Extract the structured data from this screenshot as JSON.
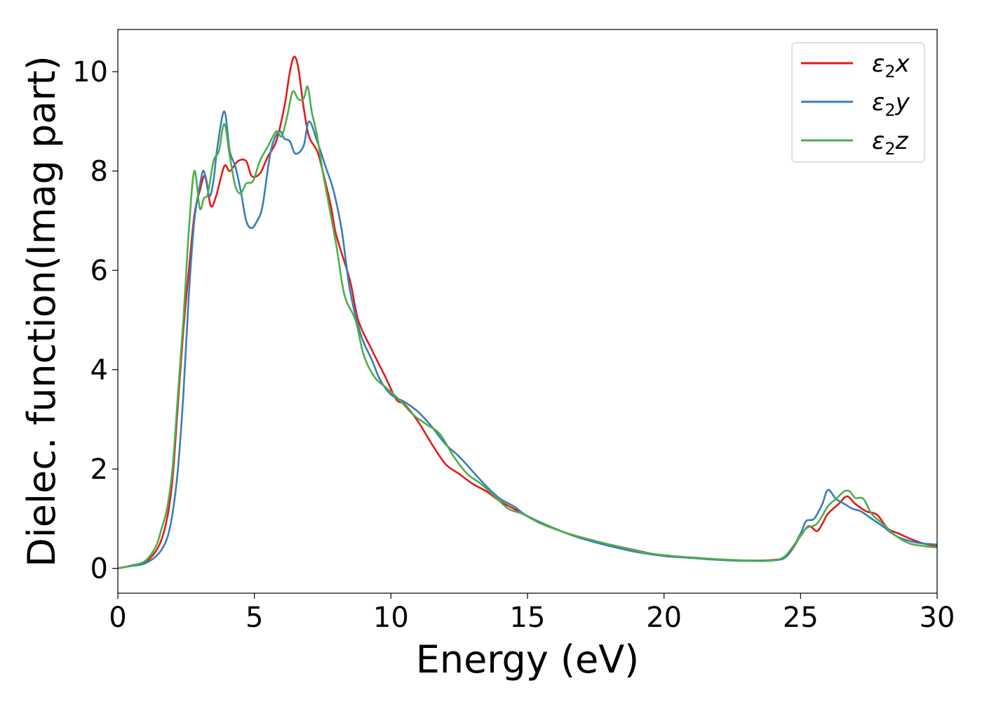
{
  "chart_data": {
    "type": "line",
    "xlabel": "Energy (eV)",
    "ylabel": "Dielec. function(Imag part)",
    "xlim": [
      0,
      30
    ],
    "ylim": [
      -0.5,
      10.85
    ],
    "xticks": [
      0,
      5,
      10,
      15,
      20,
      25,
      30
    ],
    "yticks": [
      0,
      2,
      4,
      6,
      8,
      10
    ],
    "grid": false,
    "legend_position": "top-right",
    "series": [
      {
        "name": "ε₂x",
        "legend": {
          "base": "ε",
          "sub": "2",
          "suffix": "x"
        },
        "color": "#e41a1c",
        "points": [
          [
            0,
            0
          ],
          [
            0.5,
            0.05
          ],
          [
            1.0,
            0.12
          ],
          [
            1.5,
            0.45
          ],
          [
            1.8,
            1.0
          ],
          [
            2.0,
            1.8
          ],
          [
            2.2,
            3.3
          ],
          [
            2.4,
            4.8
          ],
          [
            2.6,
            6.0
          ],
          [
            2.8,
            7.1
          ],
          [
            3.0,
            7.6
          ],
          [
            3.2,
            7.9
          ],
          [
            3.4,
            7.3
          ],
          [
            3.6,
            7.5
          ],
          [
            3.9,
            8.1
          ],
          [
            4.1,
            8.0
          ],
          [
            4.4,
            8.2
          ],
          [
            4.7,
            8.2
          ],
          [
            4.9,
            7.9
          ],
          [
            5.2,
            7.95
          ],
          [
            5.5,
            8.3
          ],
          [
            5.8,
            8.6
          ],
          [
            6.1,
            9.3
          ],
          [
            6.3,
            10.0
          ],
          [
            6.45,
            10.3
          ],
          [
            6.6,
            10.1
          ],
          [
            6.8,
            9.3
          ],
          [
            7.0,
            8.7
          ],
          [
            7.3,
            8.4
          ],
          [
            7.5,
            8.0
          ],
          [
            7.8,
            7.3
          ],
          [
            8.0,
            6.7
          ],
          [
            8.5,
            5.8
          ],
          [
            8.8,
            5.0
          ],
          [
            9.3,
            4.4
          ],
          [
            9.8,
            3.85
          ],
          [
            10.2,
            3.4
          ],
          [
            10.5,
            3.3
          ],
          [
            11.0,
            2.95
          ],
          [
            11.5,
            2.5
          ],
          [
            12.0,
            2.1
          ],
          [
            12.5,
            1.9
          ],
          [
            13.0,
            1.7
          ],
          [
            13.5,
            1.55
          ],
          [
            14.0,
            1.35
          ],
          [
            14.5,
            1.2
          ],
          [
            15.0,
            1.05
          ],
          [
            16.0,
            0.8
          ],
          [
            17.0,
            0.6
          ],
          [
            18.0,
            0.48
          ],
          [
            19.0,
            0.36
          ],
          [
            20.0,
            0.25
          ],
          [
            21.0,
            0.22
          ],
          [
            22.0,
            0.18
          ],
          [
            23.0,
            0.16
          ],
          [
            24.0,
            0.17
          ],
          [
            24.5,
            0.25
          ],
          [
            25.0,
            0.65
          ],
          [
            25.3,
            0.85
          ],
          [
            25.6,
            0.75
          ],
          [
            25.8,
            0.9
          ],
          [
            26.0,
            1.1
          ],
          [
            26.4,
            1.3
          ],
          [
            26.7,
            1.45
          ],
          [
            27.0,
            1.3
          ],
          [
            27.4,
            1.15
          ],
          [
            27.8,
            1.08
          ],
          [
            28.2,
            0.8
          ],
          [
            28.6,
            0.7
          ],
          [
            29.0,
            0.6
          ],
          [
            29.5,
            0.5
          ],
          [
            30.0,
            0.45
          ]
        ]
      },
      {
        "name": "ε₂y",
        "legend": {
          "base": "ε",
          "sub": "2",
          "suffix": "y"
        },
        "color": "#377eb8",
        "points": [
          [
            0,
            0
          ],
          [
            0.5,
            0.05
          ],
          [
            1.0,
            0.1
          ],
          [
            1.5,
            0.3
          ],
          [
            1.8,
            0.6
          ],
          [
            2.0,
            1.1
          ],
          [
            2.2,
            2.0
          ],
          [
            2.4,
            3.5
          ],
          [
            2.6,
            5.5
          ],
          [
            2.8,
            7.0
          ],
          [
            3.0,
            7.7
          ],
          [
            3.15,
            8.0
          ],
          [
            3.35,
            7.5
          ],
          [
            3.5,
            7.8
          ],
          [
            3.65,
            8.5
          ],
          [
            3.9,
            9.2
          ],
          [
            4.1,
            8.4
          ],
          [
            4.3,
            8.1
          ],
          [
            4.5,
            7.6
          ],
          [
            4.7,
            7.0
          ],
          [
            4.9,
            6.85
          ],
          [
            5.1,
            7.0
          ],
          [
            5.3,
            7.3
          ],
          [
            5.6,
            8.4
          ],
          [
            5.9,
            8.8
          ],
          [
            6.1,
            8.65
          ],
          [
            6.3,
            8.6
          ],
          [
            6.5,
            8.35
          ],
          [
            6.8,
            8.5
          ],
          [
            7.0,
            9.0
          ],
          [
            7.3,
            8.6
          ],
          [
            7.6,
            8.1
          ],
          [
            7.9,
            7.6
          ],
          [
            8.2,
            6.8
          ],
          [
            8.5,
            5.6
          ],
          [
            8.9,
            4.7
          ],
          [
            9.3,
            4.2
          ],
          [
            9.6,
            3.8
          ],
          [
            10.0,
            3.5
          ],
          [
            10.5,
            3.35
          ],
          [
            11.0,
            3.15
          ],
          [
            11.5,
            2.85
          ],
          [
            12.0,
            2.5
          ],
          [
            12.5,
            2.25
          ],
          [
            13.0,
            1.95
          ],
          [
            13.5,
            1.65
          ],
          [
            14.0,
            1.4
          ],
          [
            14.5,
            1.25
          ],
          [
            15.0,
            1.05
          ],
          [
            16.0,
            0.8
          ],
          [
            17.0,
            0.6
          ],
          [
            18.0,
            0.45
          ],
          [
            19.0,
            0.33
          ],
          [
            20.0,
            0.25
          ],
          [
            21.0,
            0.21
          ],
          [
            22.0,
            0.17
          ],
          [
            23.0,
            0.15
          ],
          [
            24.0,
            0.16
          ],
          [
            24.5,
            0.25
          ],
          [
            25.0,
            0.7
          ],
          [
            25.2,
            0.95
          ],
          [
            25.5,
            1.0
          ],
          [
            25.8,
            1.3
          ],
          [
            26.0,
            1.58
          ],
          [
            26.3,
            1.4
          ],
          [
            26.6,
            1.3
          ],
          [
            26.9,
            1.2
          ],
          [
            27.2,
            1.15
          ],
          [
            27.6,
            1.0
          ],
          [
            28.0,
            0.85
          ],
          [
            28.5,
            0.65
          ],
          [
            29.0,
            0.55
          ],
          [
            29.5,
            0.5
          ],
          [
            30.0,
            0.48
          ]
        ]
      },
      {
        "name": "ε₂z",
        "legend": {
          "base": "ε",
          "sub": "2",
          "suffix": "z"
        },
        "color": "#4daf4a",
        "points": [
          [
            0,
            0
          ],
          [
            0.5,
            0.06
          ],
          [
            1.0,
            0.15
          ],
          [
            1.4,
            0.45
          ],
          [
            1.6,
            0.8
          ],
          [
            1.8,
            1.2
          ],
          [
            2.0,
            2.0
          ],
          [
            2.2,
            3.5
          ],
          [
            2.4,
            5.0
          ],
          [
            2.6,
            6.8
          ],
          [
            2.8,
            8.0
          ],
          [
            3.0,
            7.25
          ],
          [
            3.15,
            7.45
          ],
          [
            3.3,
            7.55
          ],
          [
            3.5,
            8.2
          ],
          [
            3.7,
            8.4
          ],
          [
            3.9,
            8.95
          ],
          [
            4.1,
            8.3
          ],
          [
            4.3,
            7.7
          ],
          [
            4.5,
            7.55
          ],
          [
            4.7,
            7.75
          ],
          [
            4.95,
            7.8
          ],
          [
            5.2,
            8.2
          ],
          [
            5.5,
            8.5
          ],
          [
            5.8,
            8.8
          ],
          [
            6.0,
            8.7
          ],
          [
            6.2,
            9.1
          ],
          [
            6.4,
            9.6
          ],
          [
            6.6,
            9.45
          ],
          [
            6.8,
            9.45
          ],
          [
            6.95,
            9.7
          ],
          [
            7.1,
            9.2
          ],
          [
            7.3,
            8.7
          ],
          [
            7.5,
            8.0
          ],
          [
            7.7,
            7.4
          ],
          [
            8.0,
            6.5
          ],
          [
            8.3,
            5.5
          ],
          [
            8.7,
            5.0
          ],
          [
            9.0,
            4.3
          ],
          [
            9.4,
            3.85
          ],
          [
            9.8,
            3.65
          ],
          [
            10.3,
            3.4
          ],
          [
            10.8,
            3.1
          ],
          [
            11.3,
            2.9
          ],
          [
            11.8,
            2.7
          ],
          [
            12.3,
            2.25
          ],
          [
            12.8,
            1.9
          ],
          [
            13.3,
            1.7
          ],
          [
            13.8,
            1.45
          ],
          [
            14.3,
            1.2
          ],
          [
            14.8,
            1.1
          ],
          [
            15.5,
            0.9
          ],
          [
            16.5,
            0.7
          ],
          [
            17.5,
            0.55
          ],
          [
            18.5,
            0.42
          ],
          [
            19.5,
            0.3
          ],
          [
            20.5,
            0.24
          ],
          [
            21.5,
            0.2
          ],
          [
            22.5,
            0.17
          ],
          [
            23.5,
            0.16
          ],
          [
            24.3,
            0.2
          ],
          [
            24.8,
            0.5
          ],
          [
            25.2,
            0.8
          ],
          [
            25.6,
            0.9
          ],
          [
            26.0,
            1.25
          ],
          [
            26.3,
            1.4
          ],
          [
            26.6,
            1.55
          ],
          [
            26.8,
            1.55
          ],
          [
            27.0,
            1.42
          ],
          [
            27.3,
            1.4
          ],
          [
            27.6,
            1.1
          ],
          [
            28.0,
            0.9
          ],
          [
            28.5,
            0.65
          ],
          [
            29.0,
            0.5
          ],
          [
            29.5,
            0.45
          ],
          [
            30.0,
            0.42
          ]
        ]
      }
    ]
  }
}
